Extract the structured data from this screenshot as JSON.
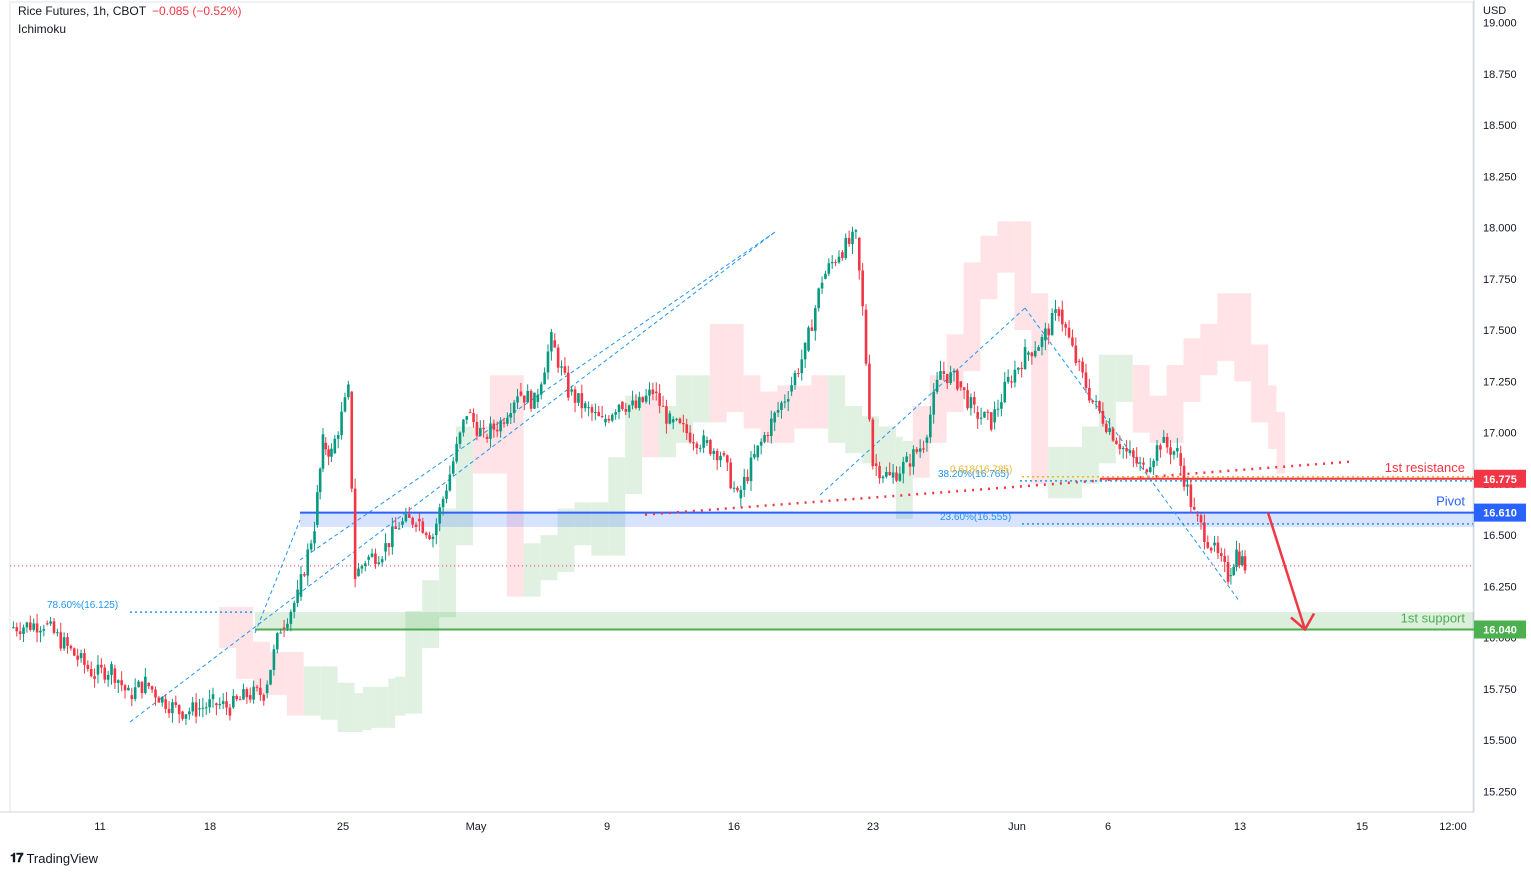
{
  "header": {
    "symbol": "Rice Futures, 1h, CBOT",
    "change": "−0.085 (−0.52%)",
    "indicator": "Ichimoku"
  },
  "footer": {
    "brand": "TradingView"
  },
  "colors": {
    "up": "#089981",
    "down": "#f23645",
    "pivot": "#2962ff",
    "support": "#4caf50",
    "resistance": "#f23645",
    "fib": "#2196f3",
    "fib_golden": "#f0b429",
    "cloud_bull": "#c8e6c9",
    "cloud_bear": "#ffcdd2"
  },
  "chart_data": {
    "type": "candlestick",
    "currency": "USD",
    "ylim": [
      15.15,
      19.1
    ],
    "y_ticks": [
      "19.000",
      "18.750",
      "18.500",
      "18.250",
      "18.000",
      "17.750",
      "17.500",
      "17.250",
      "17.000",
      "16.750",
      "16.500",
      "16.250",
      "16.000",
      "15.750",
      "15.500",
      "15.250"
    ],
    "x_ticks": [
      "11",
      "18",
      "25",
      "May",
      "9",
      "16",
      "23",
      "Jun",
      "6",
      "13",
      "15",
      "12:00"
    ],
    "price_series": [
      [
        0,
        16.05
      ],
      [
        2,
        16.07
      ],
      [
        4,
        15.9
      ],
      [
        5,
        15.82
      ],
      [
        6,
        15.85
      ],
      [
        7,
        15.72
      ],
      [
        8,
        15.78
      ],
      [
        9,
        15.7
      ],
      [
        10,
        15.64
      ],
      [
        11,
        15.65
      ],
      [
        12,
        15.68
      ],
      [
        13,
        15.66
      ],
      [
        14,
        15.72
      ],
      [
        15,
        15.73
      ],
      [
        16,
        16.05
      ],
      [
        17,
        16.2
      ],
      [
        18,
        16.55
      ],
      [
        18.5,
        16.95
      ],
      [
        19,
        16.9
      ],
      [
        20,
        17.2
      ],
      [
        20.4,
        16.3
      ],
      [
        21,
        16.38
      ],
      [
        22,
        16.42
      ],
      [
        23,
        16.55
      ],
      [
        24,
        16.58
      ],
      [
        25,
        16.5
      ],
      [
        26,
        16.8
      ],
      [
        27,
        17.1
      ],
      [
        28,
        16.98
      ],
      [
        29,
        17.05
      ],
      [
        30,
        17.2
      ],
      [
        31,
        17.15
      ],
      [
        32,
        17.45
      ],
      [
        33,
        17.2
      ],
      [
        34,
        17.12
      ],
      [
        35,
        17.05
      ],
      [
        36,
        17.15
      ],
      [
        37,
        17.12
      ],
      [
        38,
        17.2
      ],
      [
        39,
        17.05
      ],
      [
        40,
        17.0
      ],
      [
        41,
        16.95
      ],
      [
        42,
        16.9
      ],
      [
        43,
        16.68
      ],
      [
        44,
        16.88
      ],
      [
        45,
        17.05
      ],
      [
        46,
        17.2
      ],
      [
        47,
        17.4
      ],
      [
        48,
        17.75
      ],
      [
        49,
        17.88
      ],
      [
        50,
        17.95
      ],
      [
        50.4,
        17.6
      ],
      [
        51,
        16.85
      ],
      [
        52,
        16.78
      ],
      [
        53,
        16.85
      ],
      [
        54,
        16.95
      ],
      [
        55,
        17.3
      ],
      [
        56,
        17.25
      ],
      [
        57,
        17.1
      ],
      [
        58,
        17.05
      ],
      [
        59,
        17.25
      ],
      [
        60,
        17.38
      ],
      [
        61,
        17.45
      ],
      [
        62,
        17.6
      ],
      [
        63,
        17.35
      ],
      [
        64,
        17.15
      ],
      [
        65,
        17.02
      ],
      [
        66,
        16.9
      ],
      [
        67,
        16.82
      ],
      [
        68,
        16.95
      ],
      [
        69,
        16.9
      ],
      [
        70,
        16.6
      ],
      [
        71,
        16.45
      ],
      [
        72,
        16.3
      ],
      [
        72.5,
        16.42
      ],
      [
        73,
        16.35
      ]
    ],
    "levels": [
      {
        "label": "1st resistance",
        "value": 16.775,
        "value_label": "16.775",
        "color": "#f23645",
        "style": "solid"
      },
      {
        "label": "Pivot",
        "value": 16.61,
        "value_label": "16.610",
        "color": "#2962ff",
        "style": "solid"
      },
      {
        "label": "1st support",
        "value": 16.04,
        "value_label": "16.040",
        "color": "#4caf50",
        "style": "solid"
      }
    ],
    "fib_annotations": [
      {
        "label": "78.60%(16.125)",
        "value": 16.125
      },
      {
        "label": "23.60%(16.555)",
        "value": 16.555
      },
      {
        "label": "38.20%(16.765)",
        "value": 16.765
      },
      {
        "label": "0.618(16.785)",
        "value": 16.785
      }
    ],
    "last_price": 16.35,
    "forecast_arrow": {
      "from": 16.61,
      "to": 16.04
    }
  }
}
